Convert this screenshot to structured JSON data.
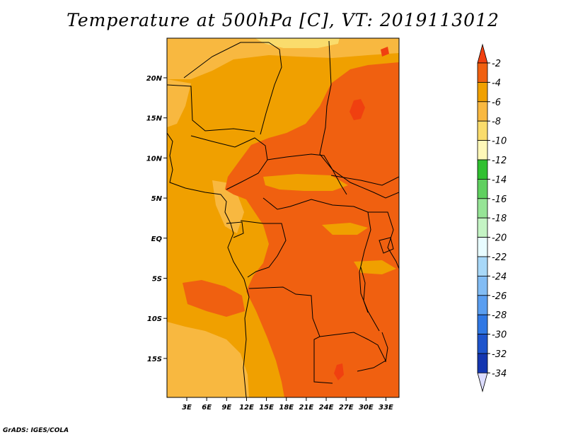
{
  "title": "Temperature at 500hPa [C], VT: 2019113012",
  "credit": "GrADS: IGES/COLA",
  "map": {
    "lon_range": [
      0,
      35
    ],
    "lat_range": [
      -20,
      25
    ],
    "lon_ticks": [
      "3E",
      "6E",
      "9E",
      "12E",
      "15E",
      "18E",
      "21E",
      "24E",
      "27E",
      "30E",
      "33E"
    ],
    "lat_ticks": [
      "20N",
      "15N",
      "10N",
      "5N",
      "EQ",
      "5S",
      "10S",
      "15S"
    ],
    "base_color": "#f0a000",
    "shade_colors": {
      "band_6_4": "#f0a000",
      "band_4_2": "#f06010",
      "band_8_6": "#f8b840",
      "band_10_8": "#fadc6c",
      "band_above_2": "#f04010"
    }
  },
  "colorbar": {
    "labels": [
      "-2",
      "-4",
      "-6",
      "-8",
      "-10",
      "-12",
      "-14",
      "-16",
      "-18",
      "-20",
      "-22",
      "-24",
      "-26",
      "-28",
      "-30",
      "-32",
      "-34"
    ],
    "colors": [
      "#f04010",
      "#f06010",
      "#f0a000",
      "#f8b840",
      "#fadc6c",
      "#fff8b8",
      "#30c030",
      "#60d060",
      "#96e496",
      "#c4f4c4",
      "#e8fcff",
      "#a8d8f8",
      "#82bcf4",
      "#5a9ef0",
      "#3078e4",
      "#1e54cc",
      "#1436b0",
      "#0c1878",
      "#dcdcff"
    ]
  }
}
